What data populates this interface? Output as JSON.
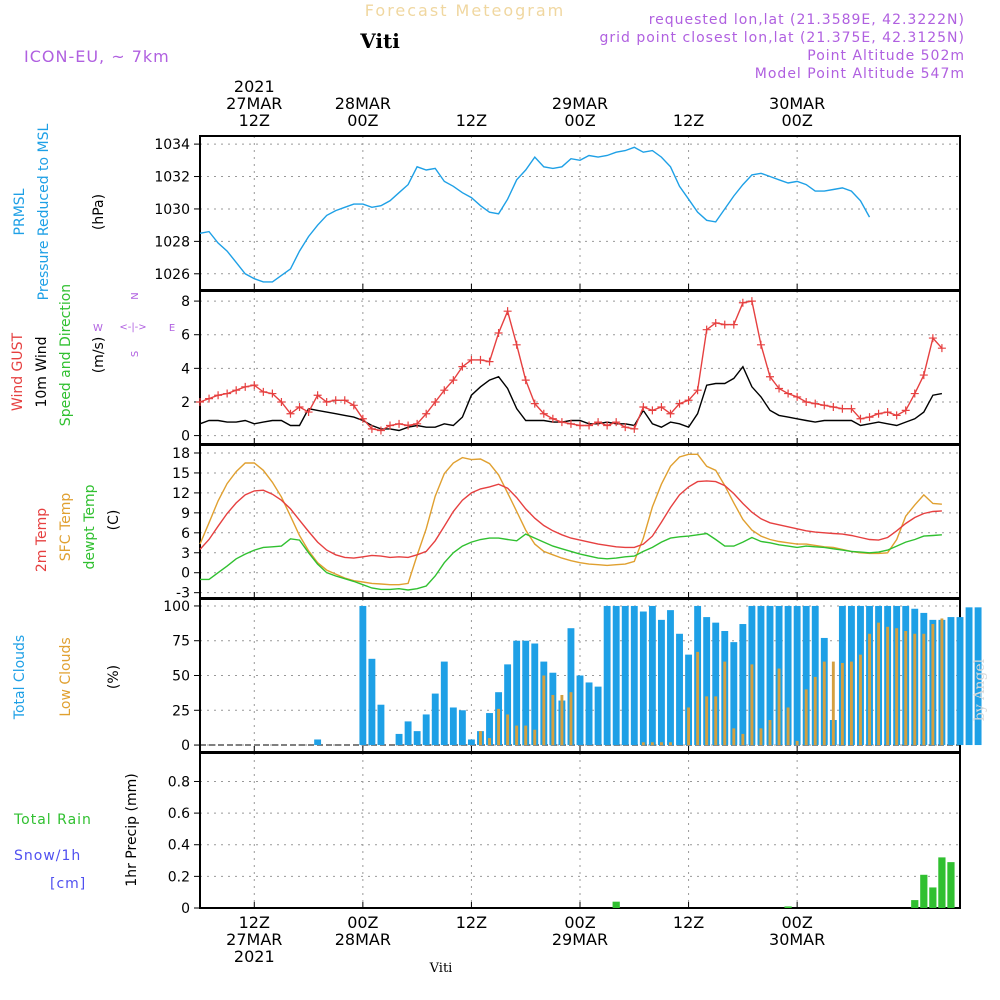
{
  "header": {
    "title": "Forecast Meteogram",
    "location": "Viti",
    "model": "ICON-EU, ~ 7km",
    "requested": "requested lon,lat (21.3589E, 42.3222N)",
    "grid_point": "grid point closest lon,lat (21.375E, 42.3125N)",
    "point_altitude": "Point Altitude 502m",
    "model_altitude": "Model Point Altitude 547m"
  },
  "labels": {
    "pressure_1": "PRMSL",
    "pressure_2": "Pressure Reduced to MSL",
    "pressure_unit": "(hPa)",
    "wind_1": "Wind GUST",
    "wind_2": "10m Wind",
    "wind_3": "Speed and Direction",
    "wind_unit": "(m/s)",
    "compass_n": "N",
    "compass_s": "S",
    "compass_w": "W",
    "compass_e": "E",
    "compass_line": "<-|->",
    "temp_1": "2m Temp",
    "temp_2": "SFC Temp",
    "temp_3": "dewpt Temp",
    "temp_unit": "(C)",
    "clouds_1": "Total Clouds",
    "clouds_2": "Low Clouds",
    "clouds_unit": "(%)",
    "precip_1": "Total  Rain",
    "precip_2": "Snow/1h",
    "precip_3": "[cm]",
    "precip_unit": "1hr Precip (mm)"
  },
  "footer": {
    "watermark": "by Angel",
    "location": "Viti"
  },
  "colors": {
    "pressure": "#1ea0e6",
    "gust": "#e64040",
    "wind10m": "#000000",
    "t2m": "#e64040",
    "sfc": "#e0a030",
    "dewpt": "#30c030",
    "total_clouds": "#1ea0e6",
    "low_clouds": "#d4a040",
    "rain": "#30c030"
  },
  "chart_data": {
    "type": "line",
    "time_axis": {
      "start_hour": 0,
      "end_hour": 84,
      "tick_hours": [
        6,
        18,
        30,
        42,
        54,
        66
      ],
      "tick_labels": [
        "12Z",
        "00Z",
        "12Z",
        "00Z",
        "12Z",
        "00Z"
      ],
      "top_labels": [
        {
          "hour": 6,
          "lines": [
            "2021",
            "27MAR",
            "12Z"
          ]
        },
        {
          "hour": 18,
          "lines": [
            "28MAR",
            "00Z"
          ]
        },
        {
          "hour": 30,
          "lines": [
            "12Z"
          ]
        },
        {
          "hour": 42,
          "lines": [
            "29MAR",
            "00Z"
          ]
        },
        {
          "hour": 54,
          "lines": [
            "12Z"
          ]
        },
        {
          "hour": 66,
          "lines": [
            "30MAR",
            "00Z"
          ]
        }
      ],
      "bottom_labels": [
        {
          "hour": 6,
          "lines": [
            "12Z",
            "27MAR",
            "2021"
          ]
        },
        {
          "hour": 18,
          "lines": [
            "00Z",
            "28MAR"
          ]
        },
        {
          "hour": 30,
          "lines": [
            "12Z"
          ]
        },
        {
          "hour": 42,
          "lines": [
            "00Z",
            "29MAR"
          ]
        },
        {
          "hour": 54,
          "lines": [
            "12Z"
          ]
        },
        {
          "hour": 66,
          "lines": [
            "00Z",
            "30MAR"
          ]
        }
      ]
    },
    "pressure": {
      "ylim": [
        1025,
        1034.5
      ],
      "yticks": [
        1026,
        1028,
        1030,
        1032,
        1034
      ],
      "values": [
        1028.5,
        1028.6,
        1027.9,
        1027.4,
        1026.7,
        1026.0,
        1025.7,
        1025.5,
        1025.5,
        1025.9,
        1026.3,
        1027.4,
        1028.3,
        1029.0,
        1029.6,
        1029.9,
        1030.1,
        1030.3,
        1030.3,
        1030.1,
        1030.2,
        1030.5,
        1031.0,
        1031.5,
        1032.6,
        1032.4,
        1032.5,
        1031.7,
        1031.4,
        1031.0,
        1030.7,
        1030.2,
        1029.8,
        1029.7,
        1030.6,
        1031.8,
        1032.4,
        1033.2,
        1032.6,
        1032.5,
        1032.6,
        1033.1,
        1033.0,
        1033.3,
        1033.2,
        1033.3,
        1033.5,
        1033.6,
        1033.8,
        1033.5,
        1033.6,
        1033.2,
        1032.6,
        1031.4,
        1030.6,
        1029.8,
        1029.3,
        1029.2,
        1030.0,
        1030.8,
        1031.5,
        1032.1,
        1032.2,
        1032.0,
        1031.8,
        1031.6,
        1031.7,
        1031.5,
        1031.1,
        1031.1,
        1031.2,
        1031.3,
        1031.1,
        1030.5,
        1029.5
      ]
    },
    "wind": {
      "ylim": [
        -0.5,
        8.6
      ],
      "yticks": [
        0,
        2,
        4,
        6,
        8
      ],
      "gust": [
        2.0,
        2.2,
        2.4,
        2.5,
        2.7,
        2.9,
        3.0,
        2.6,
        2.5,
        2.0,
        1.3,
        1.7,
        1.4,
        2.4,
        2.0,
        2.1,
        2.1,
        1.8,
        1.0,
        0.4,
        0.3,
        0.6,
        0.7,
        0.6,
        0.7,
        1.3,
        2.0,
        2.7,
        3.3,
        4.1,
        4.5,
        4.5,
        4.4,
        6.1,
        7.4,
        5.4,
        3.3,
        1.9,
        1.3,
        1.0,
        0.8,
        0.7,
        0.6,
        0.6,
        0.8,
        0.6,
        0.8,
        0.5,
        0.4,
        1.7,
        1.5,
        1.7,
        1.3,
        1.9,
        2.1,
        2.7,
        6.3,
        6.7,
        6.6,
        6.6,
        7.9,
        8.0,
        5.4,
        3.5,
        2.8,
        2.5,
        2.3,
        2.0,
        1.9,
        1.8,
        1.7,
        1.6,
        1.6,
        1.0,
        1.1,
        1.3,
        1.4,
        1.2,
        1.5,
        2.5,
        3.6,
        5.8,
        5.2
      ],
      "wind10m": [
        0.7,
        0.9,
        0.9,
        0.8,
        0.8,
        0.9,
        0.7,
        0.8,
        0.9,
        0.9,
        0.6,
        0.6,
        1.6,
        1.5,
        1.4,
        1.3,
        1.2,
        1.1,
        0.9,
        0.6,
        0.4,
        0.4,
        0.3,
        0.5,
        0.6,
        0.5,
        0.5,
        0.7,
        0.6,
        1.1,
        2.4,
        2.9,
        3.3,
        3.5,
        2.8,
        1.6,
        0.9,
        0.9,
        0.9,
        0.8,
        0.8,
        0.9,
        0.9,
        0.7,
        0.7,
        0.8,
        0.7,
        0.7,
        0.6,
        1.5,
        0.7,
        0.5,
        0.8,
        0.7,
        0.5,
        1.3,
        3.0,
        3.1,
        3.1,
        3.4,
        4.1,
        2.9,
        2.3,
        1.5,
        1.2,
        1.1,
        1.0,
        0.9,
        0.8,
        0.9,
        0.9,
        0.9,
        0.9,
        0.6,
        0.7,
        0.8,
        0.7,
        0.6,
        0.8,
        1.0,
        1.4,
        2.4,
        2.5
      ]
    },
    "temperature": {
      "ylim": [
        -3.8,
        19.2
      ],
      "yticks": [
        -3,
        0,
        3,
        6,
        9,
        12,
        15,
        18
      ],
      "t2m": [
        3.5,
        5.0,
        7.0,
        8.9,
        10.5,
        11.7,
        12.3,
        12.4,
        11.8,
        10.9,
        9.6,
        7.9,
        6.2,
        4.6,
        3.4,
        2.7,
        2.3,
        2.2,
        2.4,
        2.6,
        2.5,
        2.3,
        2.4,
        2.3,
        2.7,
        3.2,
        4.8,
        7.0,
        9.2,
        10.9,
        12.0,
        12.6,
        12.9,
        13.3,
        12.7,
        11.3,
        9.6,
        8.2,
        7.1,
        6.3,
        5.7,
        5.2,
        4.9,
        4.6,
        4.3,
        4.1,
        3.9,
        3.8,
        3.8,
        4.3,
        5.5,
        7.6,
        9.8,
        11.7,
        12.9,
        13.7,
        13.8,
        13.7,
        13.1,
        11.9,
        10.4,
        9.1,
        8.1,
        7.5,
        7.2,
        6.9,
        6.6,
        6.3,
        6.1,
        6.0,
        5.9,
        5.8,
        5.6,
        5.3,
        5.0,
        4.9,
        5.3,
        6.3,
        7.4,
        8.3,
        8.9,
        9.2,
        9.3
      ],
      "sfc": [
        4.3,
        7.5,
        10.8,
        13.4,
        15.2,
        16.5,
        16.5,
        15.4,
        13.6,
        11.4,
        8.5,
        5.6,
        3.3,
        1.5,
        0.4,
        -0.2,
        -0.8,
        -1.2,
        -1.4,
        -1.6,
        -1.7,
        -1.8,
        -1.8,
        -1.6,
        2.6,
        6.6,
        11.5,
        14.9,
        16.5,
        17.3,
        17.0,
        17.1,
        16.4,
        14.7,
        12.0,
        9.2,
        6.4,
        4.3,
        3.2,
        2.7,
        2.2,
        1.8,
        1.5,
        1.3,
        1.2,
        1.1,
        1.2,
        1.3,
        1.7,
        5.2,
        9.9,
        13.3,
        16.0,
        17.4,
        17.8,
        17.8,
        16.0,
        15.4,
        13.1,
        10.5,
        8.0,
        6.4,
        5.5,
        5.0,
        4.7,
        4.5,
        4.3,
        4.3,
        4.1,
        3.9,
        3.8,
        3.5,
        3.2,
        3.0,
        2.9,
        2.9,
        3.0,
        5.0,
        8.5,
        10.2,
        11.7,
        10.4,
        10.3
      ],
      "dewpt": [
        -1.0,
        -1.0,
        0.0,
        1.0,
        2.1,
        2.8,
        3.4,
        3.8,
        3.9,
        4.0,
        5.1,
        4.9,
        3.0,
        1.3,
        0.0,
        -0.5,
        -0.9,
        -1.3,
        -1.8,
        -2.3,
        -2.5,
        -2.5,
        -2.4,
        -2.6,
        -2.4,
        -2.0,
        -0.5,
        1.5,
        3.0,
        4.0,
        4.6,
        5.0,
        5.2,
        5.2,
        5.0,
        4.8,
        5.8,
        5.2,
        4.6,
        4.0,
        3.6,
        3.2,
        2.8,
        2.5,
        2.2,
        2.1,
        2.2,
        2.4,
        2.5,
        3.2,
        3.8,
        4.6,
        5.2,
        5.4,
        5.5,
        5.7,
        5.9,
        5.0,
        4.0,
        4.0,
        4.6,
        5.3,
        4.7,
        4.5,
        4.2,
        4.0,
        3.8,
        4.0,
        3.9,
        3.8,
        3.6,
        3.4,
        3.2,
        3.1,
        3.0,
        3.1,
        3.4,
        4.0,
        4.6,
        5.0,
        5.5,
        5.6,
        5.7
      ]
    },
    "clouds": {
      "ylim": [
        -5,
        105
      ],
      "yticks": [
        0,
        25,
        50,
        75,
        100
      ],
      "total": [
        0,
        0,
        0,
        0,
        0,
        0,
        0,
        0,
        0,
        0,
        0,
        0,
        0,
        4,
        0,
        0,
        0,
        0,
        100,
        62,
        29,
        0,
        8,
        17,
        10,
        22,
        37,
        60,
        27,
        25,
        4,
        10,
        23,
        38,
        58,
        75,
        75,
        73,
        60,
        52,
        32,
        84,
        50,
        45,
        42,
        100,
        100,
        100,
        100,
        96,
        100,
        90,
        97,
        80,
        65,
        100,
        92,
        88,
        82,
        74,
        87,
        100,
        100,
        100,
        100,
        100,
        100,
        100,
        100,
        77,
        18,
        100,
        100,
        100,
        100,
        100,
        100,
        100,
        100,
        98,
        95,
        90,
        90,
        92,
        92,
        99,
        99
      ],
      "low": [
        0,
        0,
        0,
        0,
        0,
        0,
        0,
        0,
        0,
        0,
        0,
        0,
        0,
        0,
        0,
        0,
        0,
        0,
        0,
        0,
        0,
        0,
        0,
        0,
        0,
        0,
        0,
        0,
        0,
        0,
        0,
        10,
        5,
        26,
        22,
        14,
        14,
        11,
        50,
        36,
        36,
        38,
        0,
        0,
        0,
        0,
        0,
        0,
        0,
        2,
        2,
        2,
        2,
        0,
        27,
        67,
        35,
        35,
        60,
        12,
        8,
        58,
        12,
        18,
        55,
        27,
        3,
        40,
        49,
        60,
        60,
        59,
        60,
        65,
        80,
        88,
        85,
        84,
        82,
        80,
        80,
        87,
        91
      ]
    },
    "precip": {
      "ylim": [
        0,
        0.98
      ],
      "yticks": [
        0,
        0.2,
        0.4,
        0.6,
        0.8
      ],
      "ytick_labels": [
        "0",
        "0.2",
        "0.4",
        "0.6",
        "0.8"
      ],
      "rain": [
        0,
        0,
        0,
        0,
        0,
        0,
        0,
        0,
        0,
        0,
        0,
        0,
        0,
        0,
        0,
        0,
        0,
        0,
        0,
        0,
        0,
        0,
        0,
        0,
        0,
        0,
        0,
        0,
        0,
        0,
        0,
        0,
        0,
        0,
        0,
        0,
        0,
        0,
        0,
        0,
        0,
        0,
        0,
        0,
        0,
        0,
        0.04,
        0,
        0,
        0,
        0,
        0,
        0,
        0,
        0,
        0,
        0,
        0,
        0,
        0,
        0,
        0,
        0,
        0,
        0,
        0.01,
        0,
        0,
        0,
        0,
        0,
        0,
        0,
        0,
        0,
        0,
        0,
        0,
        0,
        0.05,
        0.21,
        0.13,
        0.32,
        0.29
      ]
    }
  }
}
